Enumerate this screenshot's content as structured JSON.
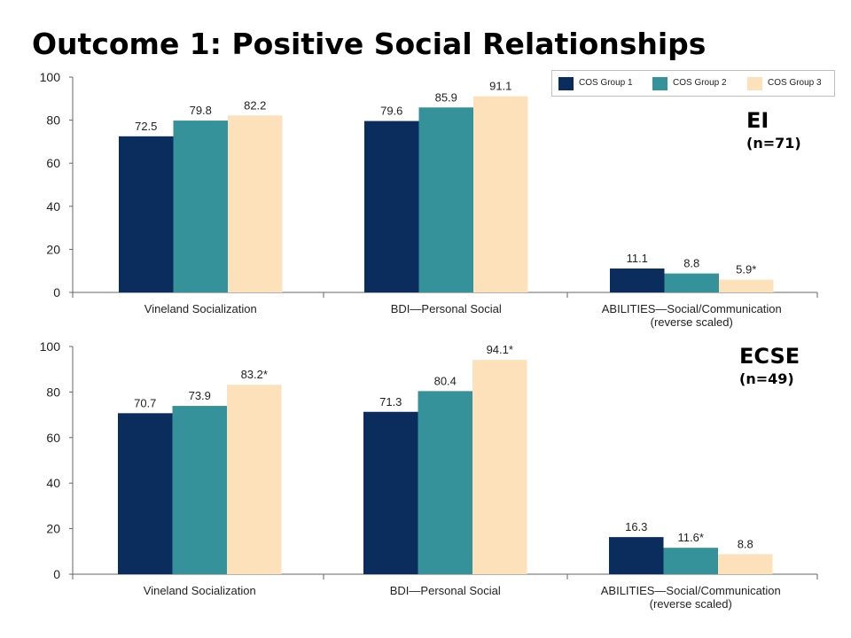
{
  "title": "Outcome 1:  Positive Social Relationships",
  "legend": [
    {
      "label": "COS Group 1",
      "color": "#0b2d5e"
    },
    {
      "label": "COS Group 2",
      "color": "#36929a"
    },
    {
      "label": "COS Group 3",
      "color": "#fde1bb"
    }
  ],
  "chart_data": [
    {
      "type": "bar",
      "panel_label": "EI",
      "panel_n": "(n=71)",
      "categories": [
        "Vineland Socialization",
        "BDI—Personal Social",
        "ABILITIES—Social/Communication\n(reverse scaled)"
      ],
      "series": [
        {
          "name": "COS Group 1",
          "values": [
            72.5,
            79.6,
            11.1
          ],
          "labels": [
            "72.5",
            "79.6",
            "11.1"
          ]
        },
        {
          "name": "COS Group 2",
          "values": [
            79.8,
            85.9,
            8.8
          ],
          "labels": [
            "79.8",
            "85.9",
            "8.8"
          ]
        },
        {
          "name": "COS Group 3",
          "values": [
            82.2,
            91.1,
            5.9
          ],
          "labels": [
            "82.2",
            "91.1",
            "5.9*"
          ]
        }
      ],
      "yticks": [
        0,
        20,
        40,
        60,
        80,
        100
      ],
      "ylim": [
        0,
        100
      ],
      "grid": false,
      "legend_position": "top-right"
    },
    {
      "type": "bar",
      "panel_label": "ECSE",
      "panel_n": "(n=49)",
      "categories": [
        "Vineland Socialization",
        "BDI—Personal Social",
        "ABILITIES—Social/Communication\n(reverse scaled)"
      ],
      "series": [
        {
          "name": "COS Group 1",
          "values": [
            70.7,
            71.3,
            16.3
          ],
          "labels": [
            "70.7",
            "71.3",
            "16.3"
          ]
        },
        {
          "name": "COS Group 2",
          "values": [
            73.9,
            80.4,
            11.6
          ],
          "labels": [
            "73.9",
            "80.4",
            "11.6*"
          ]
        },
        {
          "name": "COS Group 3",
          "values": [
            83.2,
            94.1,
            8.8
          ],
          "labels": [
            "83.2*",
            "94.1*",
            "8.8"
          ]
        }
      ],
      "yticks": [
        0,
        20,
        40,
        60,
        80,
        100
      ],
      "ylim": [
        0,
        100
      ],
      "grid": false
    }
  ]
}
